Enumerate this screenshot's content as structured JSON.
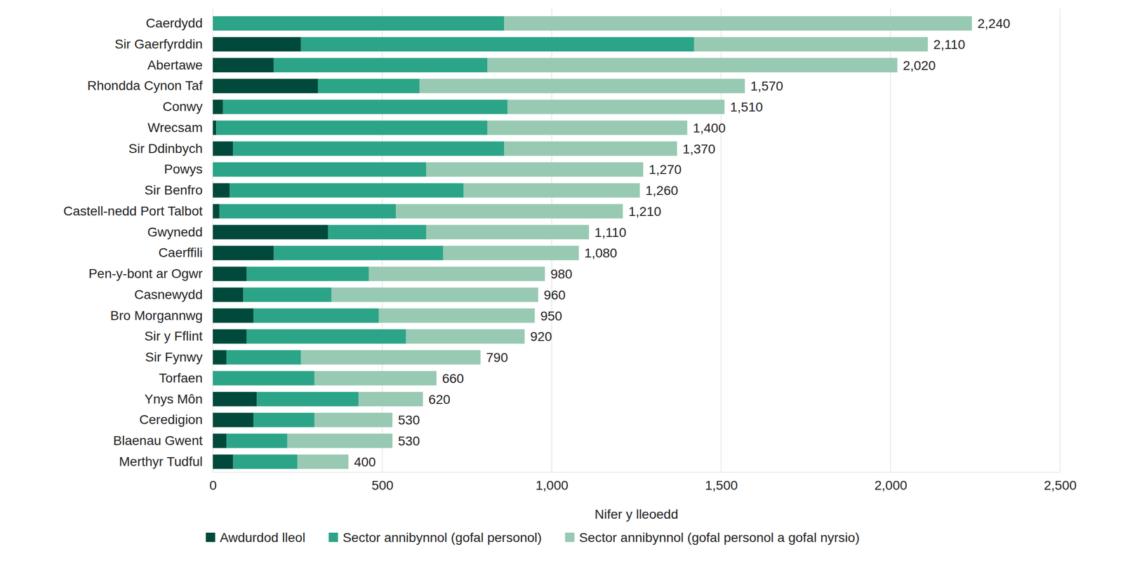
{
  "chart_data": {
    "type": "bar",
    "orientation": "horizontal",
    "stacked": true,
    "grid": true,
    "legend": "bottom",
    "x_label": "Nifer y lleoedd",
    "categories": [
      "Caerdydd",
      "Sir Gaerfyrddin",
      "Abertawe",
      "Rhondda Cynon Taf",
      "Conwy",
      "Wrecsam",
      "Sir Ddinbych",
      "Powys",
      "Sir Benfro",
      "Castell-nedd Port Talbot",
      "Gwynedd",
      "Caerffili",
      "Pen-y-bont ar Ogwr",
      "Casnewydd",
      "Bro Morgannwg",
      "Sir y Fflint",
      "Sir Fynwy",
      "Torfaen",
      "Ynys Môn",
      "Ceredigion",
      "Blaenau Gwent",
      "Merthyr Tudful"
    ],
    "series": [
      {
        "name": "Awdurdod lleol",
        "color": "#00493b",
        "values": [
          0,
          260,
          180,
          310,
          30,
          10,
          60,
          0,
          50,
          20,
          340,
          180,
          100,
          90,
          120,
          100,
          40,
          0,
          130,
          120,
          40,
          60
        ]
      },
      {
        "name": "Sector annibynnol (gofal personol)",
        "color": "#2ca488",
        "values": [
          860,
          1160,
          630,
          300,
          840,
          800,
          800,
          630,
          690,
          520,
          290,
          500,
          360,
          260,
          370,
          470,
          220,
          300,
          300,
          180,
          180,
          190
        ]
      },
      {
        "name": "Sector annibynnol (gofal personol a gofal nyrsio)",
        "color": "#98c9b3",
        "values": [
          1380,
          690,
          1210,
          960,
          640,
          590,
          510,
          640,
          520,
          670,
          480,
          400,
          520,
          610,
          460,
          350,
          530,
          360,
          190,
          230,
          310,
          150
        ]
      }
    ],
    "totals": [
      2240,
      2110,
      2020,
      1570,
      1510,
      1400,
      1370,
      1270,
      1260,
      1210,
      1110,
      1080,
      980,
      960,
      950,
      920,
      790,
      660,
      620,
      530,
      530,
      400
    ],
    "total_labels": [
      "2,240",
      "2,110",
      "2,020",
      "1,570",
      "1,510",
      "1,400",
      "1,370",
      "1,270",
      "1,260",
      "1,210",
      "1,110",
      "1,080",
      "980",
      "960",
      "950",
      "920",
      "790",
      "660",
      "620",
      "530",
      "530",
      "400"
    ],
    "xlim": [
      0,
      2500
    ],
    "xticks": [
      0,
      500,
      {
        "value": 1000,
        "label": "1,000"
      },
      {
        "value": 1500,
        "label": "1,500"
      },
      {
        "value": 2000,
        "label": "2,000"
      },
      {
        "value": 2500,
        "label": "2,500"
      }
    ]
  }
}
